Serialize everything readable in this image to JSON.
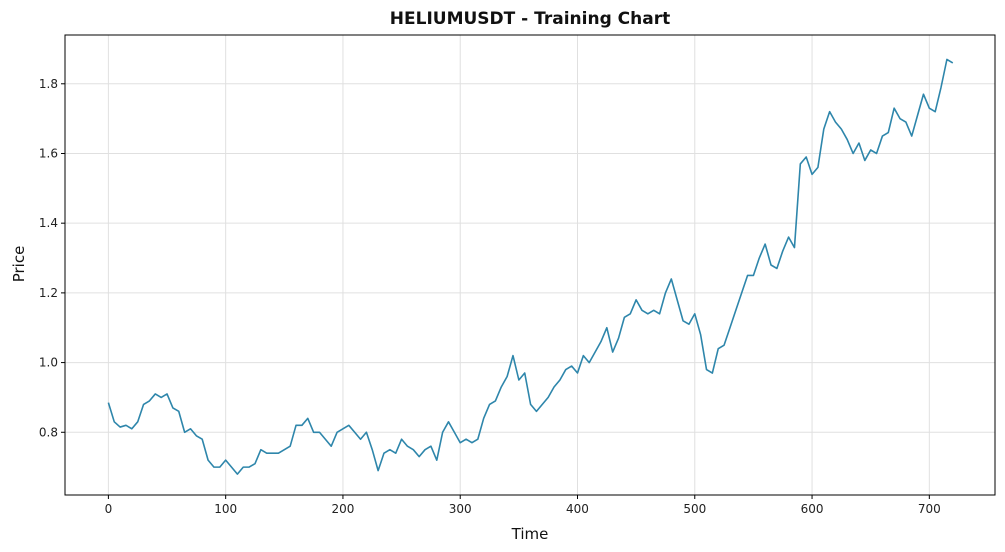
{
  "chart_data": {
    "type": "line",
    "title": "HELIUMUSDT - Training Chart",
    "xlabel": "Time",
    "ylabel": "Price",
    "xlim": [
      -37,
      756
    ],
    "ylim": [
      0.62,
      1.94
    ],
    "xticks": [
      0,
      100,
      200,
      300,
      400,
      500,
      600,
      700
    ],
    "yticks": [
      0.8,
      1.0,
      1.2,
      1.4,
      1.6,
      1.8
    ],
    "ytick_labels": [
      "0.8",
      "1.0",
      "1.2",
      "1.4",
      "1.6",
      "1.8"
    ],
    "grid": true,
    "series": [
      {
        "color": "#2e86ab",
        "x": [
          0,
          5,
          10,
          15,
          20,
          25,
          30,
          35,
          40,
          45,
          50,
          55,
          60,
          65,
          70,
          75,
          80,
          85,
          90,
          95,
          100,
          105,
          110,
          115,
          120,
          125,
          130,
          135,
          140,
          145,
          150,
          155,
          160,
          165,
          170,
          175,
          180,
          185,
          190,
          195,
          200,
          205,
          210,
          215,
          220,
          225,
          230,
          235,
          240,
          245,
          250,
          255,
          260,
          265,
          270,
          275,
          280,
          285,
          290,
          295,
          300,
          305,
          310,
          315,
          320,
          325,
          330,
          335,
          340,
          345,
          350,
          355,
          360,
          365,
          370,
          375,
          380,
          385,
          390,
          395,
          400,
          405,
          410,
          415,
          420,
          425,
          430,
          435,
          440,
          445,
          450,
          455,
          460,
          465,
          470,
          475,
          480,
          485,
          490,
          495,
          500,
          505,
          510,
          515,
          520,
          525,
          530,
          535,
          540,
          545,
          550,
          555,
          560,
          565,
          570,
          575,
          580,
          585,
          590,
          595,
          600,
          605,
          610,
          615,
          620,
          625,
          630,
          635,
          640,
          645,
          650,
          655,
          660,
          665,
          670,
          675,
          680,
          685,
          690,
          695,
          700,
          705,
          710,
          715,
          720
        ],
        "y": [
          0.885,
          0.83,
          0.815,
          0.82,
          0.81,
          0.83,
          0.88,
          0.89,
          0.91,
          0.9,
          0.91,
          0.87,
          0.86,
          0.8,
          0.81,
          0.79,
          0.78,
          0.72,
          0.7,
          0.7,
          0.72,
          0.7,
          0.68,
          0.7,
          0.7,
          0.71,
          0.75,
          0.74,
          0.74,
          0.74,
          0.75,
          0.76,
          0.82,
          0.82,
          0.84,
          0.8,
          0.8,
          0.78,
          0.76,
          0.8,
          0.81,
          0.82,
          0.8,
          0.78,
          0.8,
          0.75,
          0.69,
          0.74,
          0.75,
          0.74,
          0.78,
          0.76,
          0.75,
          0.73,
          0.75,
          0.76,
          0.72,
          0.8,
          0.83,
          0.8,
          0.77,
          0.78,
          0.77,
          0.78,
          0.84,
          0.88,
          0.89,
          0.93,
          0.96,
          1.02,
          0.95,
          0.97,
          0.88,
          0.86,
          0.88,
          0.9,
          0.93,
          0.95,
          0.98,
          0.99,
          0.97,
          1.02,
          1.0,
          1.03,
          1.06,
          1.1,
          1.03,
          1.07,
          1.13,
          1.14,
          1.18,
          1.15,
          1.14,
          1.15,
          1.14,
          1.2,
          1.24,
          1.18,
          1.12,
          1.11,
          1.14,
          1.08,
          0.98,
          0.97,
          1.04,
          1.05,
          1.1,
          1.15,
          1.2,
          1.25,
          1.25,
          1.3,
          1.34,
          1.28,
          1.27,
          1.32,
          1.36,
          1.33,
          1.57,
          1.59,
          1.54,
          1.56,
          1.67,
          1.72,
          1.69,
          1.67,
          1.64,
          1.6,
          1.63,
          1.58,
          1.61,
          1.6,
          1.65,
          1.66,
          1.73,
          1.7,
          1.69,
          1.65,
          1.71,
          1.77,
          1.73,
          1.72,
          1.79,
          1.87,
          1.86
        ]
      }
    ]
  }
}
